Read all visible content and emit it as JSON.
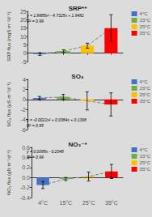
{
  "chart_data": [
    {
      "type": "bar",
      "title": "SRP**",
      "y_label": "SRP flux (mgS m⁻²d⁻¹)",
      "categories": [
        "4°C",
        "15°C",
        "25°C",
        "35°C"
      ],
      "values": [
        -0.5,
        1.2,
        4.5,
        15.0
      ],
      "errors": [
        0.8,
        0.8,
        1.5,
        8.0
      ],
      "colors": [
        "#4472C4",
        "#70AD47",
        "#FFC000",
        "#FF0000"
      ],
      "ylim": [
        -5,
        25
      ],
      "yticks": [
        -5,
        0,
        5,
        10,
        15,
        20,
        25
      ],
      "annotations": [
        "y = 1.9885x² - 4.7325x + 1.9481",
        "R² = 0.99"
      ],
      "legend": "right",
      "grid": false,
      "line_style": "dashed",
      "tick_labels": "y"
    },
    {
      "type": "bar",
      "title": "SO₄",
      "y_label": "SO₄ flux (μS m⁻²d⁻¹)",
      "categories": [
        "4°C",
        "15°C",
        "25°C",
        "35°C"
      ],
      "values": [
        0.3,
        0.5,
        -0.3,
        -1.0
      ],
      "errors": [
        0.3,
        0.5,
        1.8,
        2.3
      ],
      "colors": [
        "#4472C4",
        "#70AD47",
        "#FFC000",
        "#FF0000"
      ],
      "ylim": [
        -6,
        4
      ],
      "yticks": [
        -6,
        -4,
        -2,
        0,
        2,
        4
      ],
      "annotations": [
        "y = -0.0022x² + 0.0384x + 0.1308",
        "R² = 0.95"
      ],
      "legend": "right",
      "grid": false,
      "line_style": "dashed",
      "tick_labels": "y"
    },
    {
      "type": "bar",
      "title": "NO₃⁻*",
      "y_label": "NO₃ flux (gN m⁻²d⁻¹)",
      "categories": [
        "4°C",
        "15°C",
        "25°C",
        "35°C"
      ],
      "values": [
        -0.15,
        -0.03,
        0.02,
        0.12
      ],
      "errors": [
        0.07,
        0.03,
        0.09,
        0.14
      ],
      "colors": [
        "#4472C4",
        "#70AD47",
        "#FFC000",
        "#FF0000"
      ],
      "ylim": [
        -0.4,
        0.6
      ],
      "yticks": [
        -0.4,
        -0.2,
        {
          "value": 0.0,
          "label": "0.0"
        },
        0.2,
        0.4,
        0.6
      ],
      "annotations": [
        "y = 0.0095x - 0.2048",
        "R² = 0.99"
      ],
      "legend": "right",
      "grid": false,
      "line_style": "dashed"
    }
  ]
}
